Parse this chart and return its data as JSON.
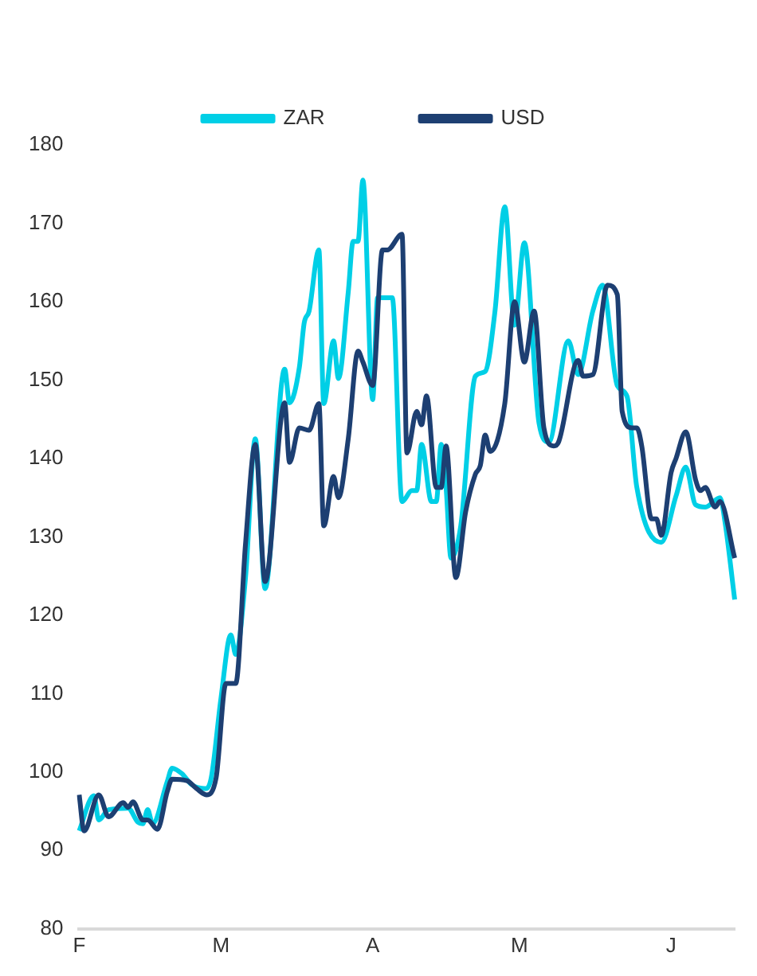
{
  "chart_data": {
    "type": "line",
    "categories": [
      "F",
      null,
      null,
      null,
      null,
      null,
      null,
      null,
      null,
      null,
      null,
      null,
      null,
      null,
      null,
      null,
      null,
      null,
      null,
      null,
      null,
      null,
      null,
      null,
      null,
      null,
      null,
      null,
      null,
      "M",
      null,
      null,
      null,
      null,
      null,
      null,
      null,
      null,
      null,
      null,
      null,
      null,
      null,
      null,
      null,
      null,
      null,
      null,
      null,
      null,
      null,
      null,
      null,
      null,
      null,
      null,
      null,
      null,
      null,
      null,
      "A",
      null,
      null,
      null,
      null,
      null,
      null,
      null,
      null,
      null,
      null,
      null,
      null,
      null,
      null,
      null,
      null,
      null,
      null,
      null,
      null,
      null,
      null,
      null,
      null,
      null,
      null,
      null,
      null,
      null,
      "M",
      null,
      null,
      null,
      null,
      null,
      null,
      null,
      null,
      null,
      null,
      null,
      null,
      null,
      null,
      null,
      null,
      null,
      null,
      null,
      null,
      null,
      null,
      null,
      null,
      null,
      null,
      null,
      null,
      null,
      null,
      "J",
      null,
      null,
      null,
      null,
      null,
      null,
      null,
      null,
      null,
      null,
      null,
      null,
      null
    ],
    "ylim": [
      80,
      180
    ],
    "yticks": [
      80,
      90,
      100,
      110,
      120,
      130,
      140,
      150,
      160,
      170,
      180
    ],
    "grid": false,
    "legend": "top",
    "series": [
      {
        "name": "ZAR",
        "color": "#00cfe6",
        "values": [
          92.5,
          null,
          null,
          97,
          93.9,
          null,
          95.2,
          null,
          null,
          null,
          95.4,
          null,
          93.6,
          93.4,
          95.2,
          93.4,
          null,
          null,
          98.8,
          100.5,
          null,
          99.8,
          null,
          98.4,
          null,
          null,
          97.9,
          99.3,
          null,
          109.5,
          null,
          117.5,
          115,
          null,
          124.8,
          null,
          142.5,
          null,
          123.4,
          null,
          null,
          null,
          151.4,
          147.1,
          null,
          151.6,
          157.3,
          158.8,
          null,
          166.6,
          147,
          null,
          155,
          150.2,
          null,
          161.2,
          167.7,
          167.7,
          175.5,
          null,
          147.5,
          160.5,
          null,
          null,
          160.5,
          null,
          134.5,
          null,
          135.9,
          135.9,
          141.8,
          null,
          134.5,
          134.5,
          141.8,
          136.3,
          127.3,
          null,
          131.4,
          null,
          null,
          150.5,
          null,
          151.1,
          null,
          158.8,
          null,
          172.1,
          null,
          157,
          null,
          167.5,
          null,
          null,
          144.5,
          null,
          142.1,
          null,
          null,
          null,
          155,
          null,
          150.7,
          null,
          null,
          158.8,
          null,
          162.1,
          null,
          null,
          149.3,
          null,
          147.9,
          null,
          136.3,
          null,
          null,
          null,
          null,
          129.3,
          null,
          null,
          135.2,
          null,
          138.9,
          null,
          134.1,
          null,
          133.8,
          null,
          null,
          135,
          132,
          null,
          122
        ]
      },
      {
        "name": "USD",
        "color": "#1d3f72",
        "values": [
          97.1,
          92.5,
          null,
          null,
          97.1,
          null,
          94.3,
          null,
          null,
          96.1,
          95.5,
          96.2,
          null,
          93.9,
          93.9,
          null,
          92.7,
          null,
          97.5,
          99.1,
          null,
          null,
          98.9,
          null,
          97.9,
          null,
          97.1,
          null,
          99.3,
          null,
          111.3,
          null,
          111.3,
          null,
          129.1,
          null,
          141.8,
          null,
          124.3,
          null,
          null,
          null,
          147.1,
          139.5,
          null,
          143.9,
          null,
          143.6,
          null,
          147,
          131.4,
          null,
          137.7,
          135,
          null,
          142.5,
          null,
          153.7,
          152.3,
          null,
          149.3,
          null,
          166.6,
          166.6,
          null,
          null,
          168.6,
          140.7,
          null,
          146,
          144.3,
          148,
          null,
          136.3,
          136.3,
          141.6,
          null,
          124.8,
          null,
          133.2,
          null,
          138,
          139.1,
          143,
          140.9,
          null,
          null,
          147,
          null,
          160,
          null,
          152.3,
          null,
          158.8,
          null,
          143.9,
          null,
          141.6,
          142.1,
          null,
          null,
          null,
          152.5,
          150.5,
          null,
          150.7,
          null,
          null,
          162.1,
          null,
          160.9,
          146,
          null,
          143.9,
          143.9,
          141.6,
          null,
          132.3,
          132.3,
          130.2,
          null,
          138.2,
          140,
          null,
          143.4,
          null,
          137.3,
          135.9,
          136.3,
          null,
          133.8,
          134.5,
          null,
          null,
          127.3
        ]
      }
    ]
  }
}
